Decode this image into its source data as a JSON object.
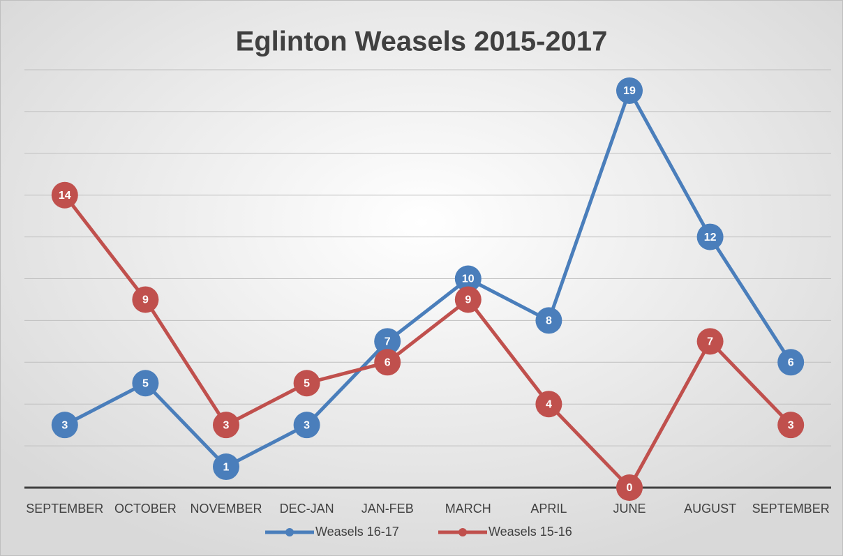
{
  "chart_data": {
    "type": "line",
    "title": "Eglinton Weasels 2015-2017",
    "categories": [
      "SEPTEMBER",
      "OCTOBER",
      "NOVEMBER",
      "DEC-JAN",
      "JAN-FEB",
      "MARCH",
      "APRIL",
      "JUNE",
      "AUGUST",
      "SEPTEMBER"
    ],
    "series": [
      {
        "name": "Weasels 16-17",
        "color": "#4a7ebb",
        "values": [
          3,
          5,
          1,
          3,
          7,
          10,
          8,
          19,
          12,
          6
        ]
      },
      {
        "name": "Weasels 15-16",
        "color": "#c0504d",
        "values": [
          14,
          9,
          3,
          5,
          6,
          9,
          4,
          0,
          7,
          3
        ]
      }
    ],
    "ylim": [
      0,
      20
    ],
    "yticks": [
      0,
      2,
      4,
      6,
      8,
      10,
      12,
      14,
      16,
      18,
      20
    ],
    "grid": true,
    "legend": "bottom"
  }
}
